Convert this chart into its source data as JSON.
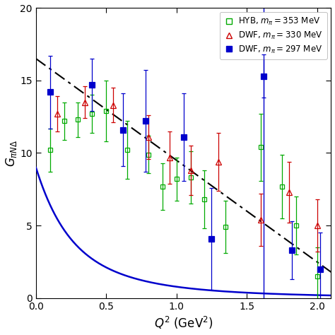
{
  "xlabel": "$Q^2$ (GeV$^2$)",
  "ylabel": "$G_{\\pi N\\Delta}$",
  "xlim": [
    0,
    2.1
  ],
  "ylim": [
    0,
    20
  ],
  "xticks": [
    0,
    0.5,
    1.0,
    1.5,
    2.0
  ],
  "yticks": [
    0,
    5,
    10,
    15,
    20
  ],
  "hyb_x": [
    0.1,
    0.2,
    0.3,
    0.4,
    0.5,
    0.65,
    0.8,
    0.9,
    1.0,
    1.1,
    1.2,
    1.35,
    1.6,
    1.75,
    1.85,
    2.0
  ],
  "hyb_y": [
    10.2,
    12.2,
    12.3,
    12.7,
    12.9,
    10.2,
    9.9,
    7.7,
    8.2,
    8.3,
    6.8,
    4.9,
    10.4,
    7.7,
    5.0,
    1.5
  ],
  "hyb_ye": [
    1.5,
    1.3,
    1.2,
    1.3,
    2.1,
    2.0,
    1.3,
    1.6,
    1.5,
    1.8,
    2.0,
    1.8,
    2.3,
    2.2,
    2.0,
    2.0
  ],
  "dwf330_x": [
    0.15,
    0.35,
    0.55,
    0.8,
    0.95,
    1.1,
    1.3,
    1.6,
    1.8,
    2.0
  ],
  "dwf330_y": [
    12.7,
    13.5,
    13.3,
    11.1,
    9.7,
    8.8,
    9.4,
    5.4,
    7.3,
    5.0
  ],
  "dwf330_ye": [
    1.2,
    1.1,
    1.2,
    1.5,
    1.8,
    1.7,
    2.0,
    1.8,
    2.1,
    1.8
  ],
  "dwf297_x": [
    0.1,
    0.4,
    0.62,
    0.78,
    1.05,
    1.25,
    1.62,
    1.82,
    2.02
  ],
  "dwf297_y": [
    14.2,
    14.7,
    11.6,
    12.2,
    11.1,
    4.1,
    15.3,
    3.3,
    2.0
  ],
  "dwf297_ye": [
    2.5,
    1.8,
    2.5,
    3.5,
    3.0,
    3.5,
    1.5,
    2.0,
    2.5
  ],
  "solid_line_color": "#0000cc",
  "dashed_line_color": "#000000",
  "legend_labels": [
    "HYB, $m_\\pi = 353$ MeV",
    "DWF, $m_\\pi = 330$ MeV",
    "DWF, $m_\\pi = 297$ MeV"
  ],
  "vline_x": 1.62,
  "vline_color": "#0000cc",
  "solid_curve_A": 6.0,
  "solid_curve_B": 0.28,
  "solid_curve_C": 8.8,
  "solid_curve_D": 0.38,
  "dasheddot_intercept": 16.5,
  "dasheddot_slope": -7.0
}
